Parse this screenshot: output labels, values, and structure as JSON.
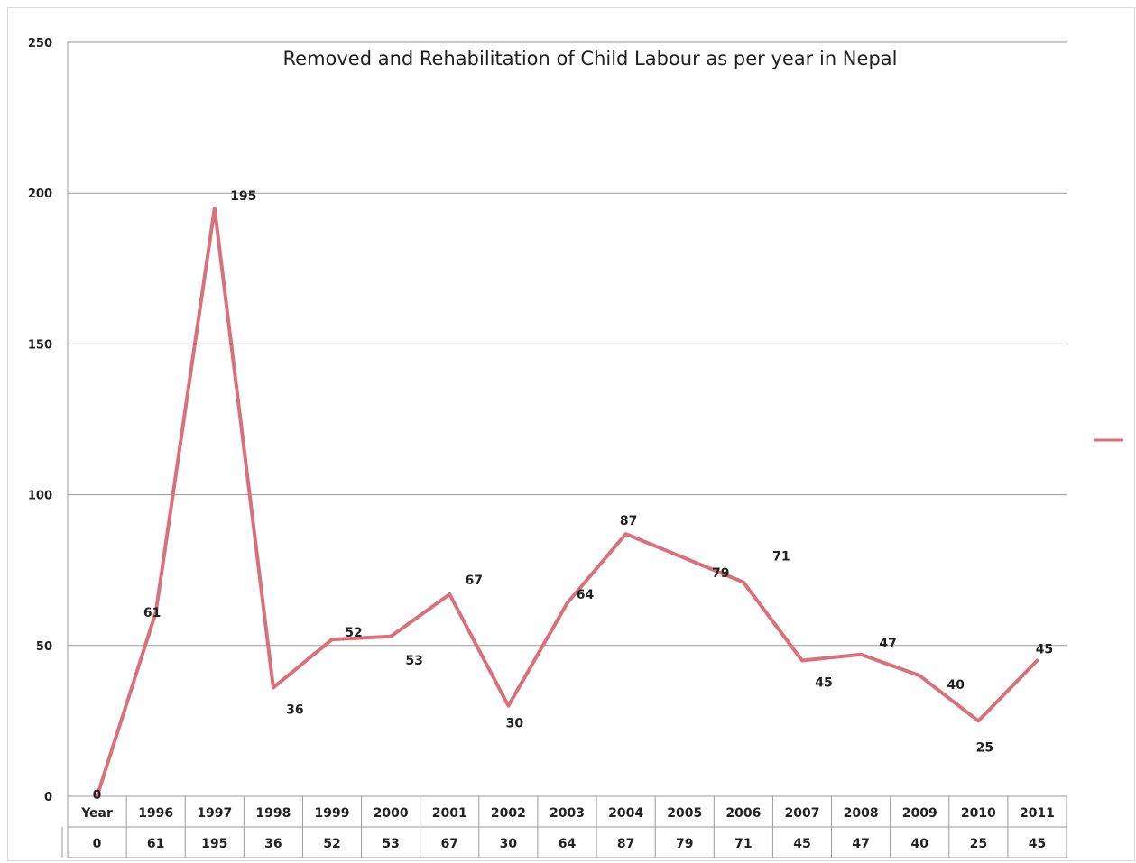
{
  "chart_data": {
    "type": "line",
    "title": "Removed and Rehabilitation of Child Labour as per year in Nepal",
    "categories": [
      "Year",
      "1996",
      "1997",
      "1998",
      "1999",
      "2000",
      "2001",
      "2002",
      "2003",
      "2004",
      "2005",
      "2006",
      "2007",
      "2008",
      "2009",
      "2010",
      "2011"
    ],
    "series": [
      {
        "values": [
          0,
          61,
          195,
          36,
          52,
          53,
          67,
          30,
          64,
          87,
          79,
          71,
          45,
          47,
          40,
          25,
          45
        ],
        "color": "#d9707a"
      }
    ],
    "yticks": [
      0,
      50,
      100,
      150,
      200,
      250
    ],
    "ylim": [
      0,
      250
    ],
    "grid": true,
    "legend": "right",
    "data_table": true
  }
}
